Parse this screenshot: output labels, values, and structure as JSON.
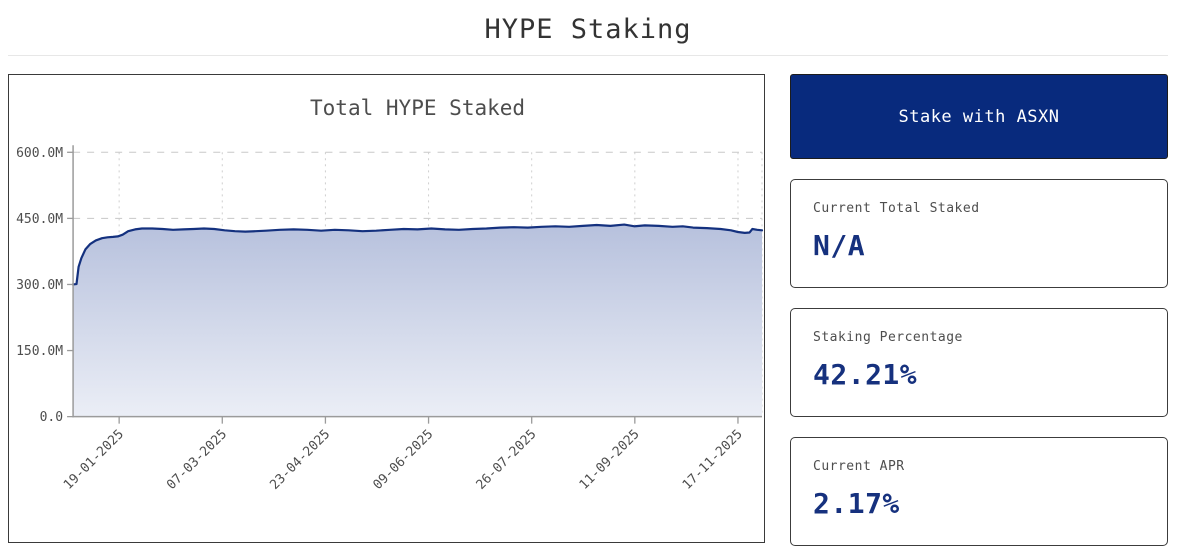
{
  "page": {
    "title": "HYPE Staking"
  },
  "actions": {
    "stake_button_label": "Stake with ASXN"
  },
  "stats": [
    {
      "label": "Current Total Staked",
      "value": "N/A"
    },
    {
      "label": "Staking Percentage",
      "value": "42.21%"
    },
    {
      "label": "Current APR",
      "value": "2.17%"
    }
  ],
  "colors": {
    "button_navy": "#082a7d",
    "value_navy": "#16317e",
    "line_navy": "#14317f",
    "area_top": "#b7c1dd",
    "area_bottom": "#ebeef6",
    "grid_gray": "#c8c8c8",
    "axis_gray": "#9b9b9b",
    "chart_title_gray": "#6e6e6e"
  },
  "chart_data": {
    "type": "area",
    "title": "Total HYPE Staked",
    "xlabel": "",
    "ylabel": "",
    "grid": true,
    "legend": "none",
    "ylim_millions": [
      0,
      600
    ],
    "y_ticks": [
      {
        "value": 0,
        "label": "0.0"
      },
      {
        "value": 150,
        "label": "150.0M"
      },
      {
        "value": 300,
        "label": "300.0M"
      },
      {
        "value": 450,
        "label": "450.0M"
      },
      {
        "value": 600,
        "label": "600.0M"
      }
    ],
    "x_ticks": [
      "19-01-2025",
      "07-03-2025",
      "23-04-2025",
      "09-06-2025",
      "26-07-2025",
      "11-09-2025",
      "17-11-2025"
    ],
    "series": [
      {
        "name": "Total HYPE Staked",
        "unit": "HYPE (millions)",
        "points_format": "[x_fraction_of_axis, value_in_millions]",
        "points": [
          [
            0.0,
            300
          ],
          [
            0.005,
            301
          ],
          [
            0.008,
            340
          ],
          [
            0.012,
            360
          ],
          [
            0.018,
            380
          ],
          [
            0.025,
            392
          ],
          [
            0.033,
            400
          ],
          [
            0.042,
            405
          ],
          [
            0.05,
            407
          ],
          [
            0.058,
            408
          ],
          [
            0.065,
            409
          ],
          [
            0.072,
            413
          ],
          [
            0.08,
            421
          ],
          [
            0.09,
            425
          ],
          [
            0.1,
            427
          ],
          [
            0.115,
            427
          ],
          [
            0.13,
            426
          ],
          [
            0.145,
            424
          ],
          [
            0.16,
            425
          ],
          [
            0.175,
            426
          ],
          [
            0.19,
            427
          ],
          [
            0.205,
            426
          ],
          [
            0.22,
            423
          ],
          [
            0.235,
            421
          ],
          [
            0.25,
            420
          ],
          [
            0.265,
            421
          ],
          [
            0.28,
            422
          ],
          [
            0.3,
            424
          ],
          [
            0.32,
            425
          ],
          [
            0.34,
            424
          ],
          [
            0.36,
            422
          ],
          [
            0.38,
            424
          ],
          [
            0.4,
            423
          ],
          [
            0.42,
            421
          ],
          [
            0.44,
            422
          ],
          [
            0.46,
            424
          ],
          [
            0.48,
            426
          ],
          [
            0.5,
            425
          ],
          [
            0.52,
            427
          ],
          [
            0.54,
            425
          ],
          [
            0.56,
            424
          ],
          [
            0.58,
            426
          ],
          [
            0.6,
            427
          ],
          [
            0.62,
            429
          ],
          [
            0.64,
            430
          ],
          [
            0.66,
            429
          ],
          [
            0.68,
            431
          ],
          [
            0.7,
            432
          ],
          [
            0.72,
            431
          ],
          [
            0.74,
            433
          ],
          [
            0.76,
            435
          ],
          [
            0.78,
            433
          ],
          [
            0.8,
            436
          ],
          [
            0.815,
            432
          ],
          [
            0.83,
            434
          ],
          [
            0.85,
            433
          ],
          [
            0.87,
            431
          ],
          [
            0.885,
            432
          ],
          [
            0.9,
            429
          ],
          [
            0.92,
            428
          ],
          [
            0.94,
            426
          ],
          [
            0.955,
            423
          ],
          [
            0.965,
            419
          ],
          [
            0.975,
            417
          ],
          [
            0.982,
            418
          ],
          [
            0.986,
            426
          ],
          [
            0.993,
            424
          ],
          [
            1.0,
            423
          ]
        ]
      }
    ]
  }
}
